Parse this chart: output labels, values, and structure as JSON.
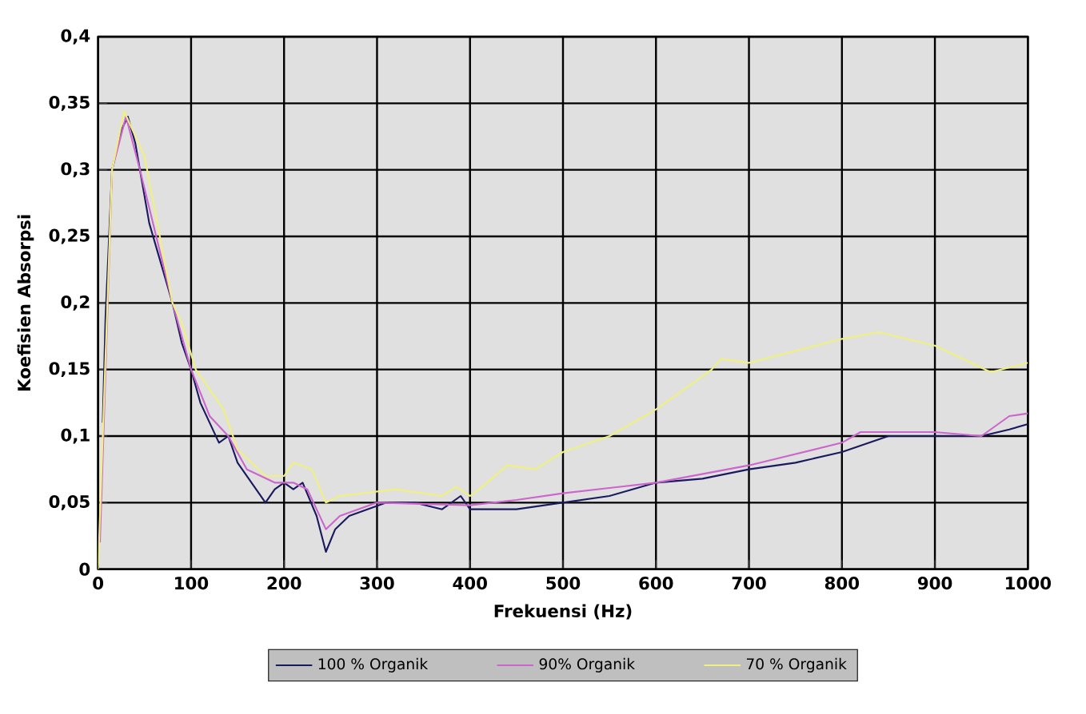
{
  "chart_data": {
    "type": "line",
    "xlabel": "Frekuensi (Hz)",
    "ylabel": "Koefisien Absorpsi",
    "xlim": [
      0,
      1000
    ],
    "ylim": [
      0,
      0.4
    ],
    "xticks": [
      0,
      100,
      200,
      300,
      400,
      500,
      600,
      700,
      800,
      900,
      1000
    ],
    "yticks": [
      0,
      {
        "value": 0.05,
        "label": "0,05"
      },
      {
        "value": 0.1,
        "label": "0,1"
      },
      {
        "value": 0.15,
        "label": "0,15"
      },
      {
        "value": 0.2,
        "label": "0,2"
      },
      {
        "value": 0.25,
        "label": "0,25"
      },
      {
        "value": 0.3,
        "label": "0,3"
      },
      {
        "value": 0.35,
        "label": "0,35"
      },
      {
        "value": 0.4,
        "label": "0,4"
      }
    ],
    "grid": true,
    "legend": "bottom",
    "line_style": "solid",
    "marker": "none",
    "series": [
      {
        "name": "100 % Organik",
        "color": "#1a1a5e",
        "x": [
          5,
          8,
          15,
          25,
          32,
          40,
          50,
          55,
          80,
          90,
          100,
          110,
          120,
          130,
          140,
          150,
          165,
          180,
          190,
          200,
          210,
          220,
          235,
          245,
          255,
          270,
          290,
          310,
          340,
          370,
          390,
          400,
          450,
          500,
          550,
          600,
          650,
          700,
          750,
          800,
          850,
          900,
          950,
          980,
          1000
        ],
        "values": [
          0.11,
          0.19,
          0.3,
          0.33,
          0.34,
          0.32,
          0.28,
          0.26,
          0.2,
          0.17,
          0.15,
          0.125,
          0.11,
          0.095,
          0.1,
          0.08,
          0.065,
          0.05,
          0.06,
          0.065,
          0.06,
          0.065,
          0.04,
          0.013,
          0.03,
          0.04,
          0.045,
          0.05,
          0.05,
          0.045,
          0.055,
          0.045,
          0.045,
          0.05,
          0.055,
          0.065,
          0.068,
          0.075,
          0.08,
          0.088,
          0.1,
          0.1,
          0.1,
          0.105,
          0.109
        ]
      },
      {
        "name": "90% Organik",
        "color": "#cc66cc",
        "x": [
          2,
          15,
          30,
          45,
          80,
          100,
          120,
          140,
          160,
          190,
          210,
          225,
          245,
          260,
          300,
          400,
          450,
          500,
          600,
          700,
          800,
          820,
          900,
          950,
          980,
          1000
        ],
        "values": [
          0.02,
          0.3,
          0.34,
          0.3,
          0.2,
          0.15,
          0.115,
          0.1,
          0.075,
          0.065,
          0.065,
          0.06,
          0.03,
          0.04,
          0.05,
          0.048,
          0.052,
          0.057,
          0.065,
          0.078,
          0.095,
          0.103,
          0.103,
          0.1,
          0.115,
          0.117
        ]
      },
      {
        "name": "70 % Organik",
        "color": "#f0f080",
        "x": [
          0,
          10,
          15,
          28,
          50,
          80,
          90,
          105,
          135,
          150,
          180,
          200,
          210,
          230,
          245,
          260,
          320,
          370,
          385,
          400,
          410,
          440,
          470,
          500,
          550,
          600,
          660,
          670,
          700,
          800,
          840,
          900,
          960,
          1000
        ],
        "values": [
          0,
          0.2,
          0.3,
          0.344,
          0.31,
          0.2,
          0.185,
          0.15,
          0.12,
          0.09,
          0.07,
          0.07,
          0.08,
          0.075,
          0.05,
          0.055,
          0.06,
          0.055,
          0.062,
          0.055,
          0.06,
          0.078,
          0.075,
          0.088,
          0.1,
          0.12,
          0.15,
          0.158,
          0.155,
          0.173,
          0.178,
          0.168,
          0.148,
          0.155
        ]
      }
    ]
  }
}
